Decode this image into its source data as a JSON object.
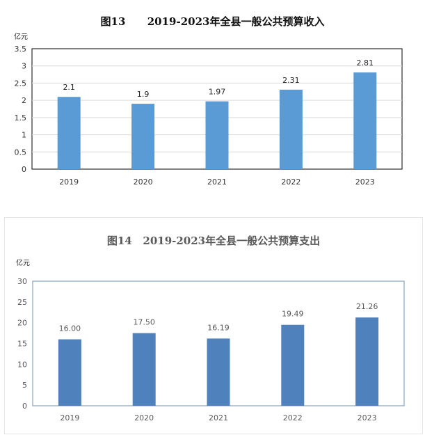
{
  "chart_data": [
    {
      "type": "bar",
      "title": "图13      2019-2023年全县一般公共预算收入",
      "ylabel": "亿元",
      "xlabel": "",
      "categories": [
        "2019",
        "2020",
        "2021",
        "2022",
        "2023"
      ],
      "values": [
        2.1,
        1.9,
        1.97,
        2.31,
        2.81
      ],
      "data_labels": [
        "2.1",
        "1.9",
        "1.97",
        "2.31",
        "2.81"
      ],
      "ylim": [
        0,
        3.5
      ],
      "yticks": [
        "0",
        "0.5",
        "1",
        "1.5",
        "2",
        "2.5",
        "3",
        "3.5"
      ],
      "grid": true,
      "bar_color": "#5b9bd5"
    },
    {
      "type": "bar",
      "title": "图14   2019-2023年全县一般公共预算支出",
      "ylabel": "亿元",
      "xlabel": "",
      "categories": [
        "2019",
        "2020",
        "2021",
        "2022",
        "2023"
      ],
      "values": [
        16.0,
        17.5,
        16.19,
        19.49,
        21.26
      ],
      "data_labels": [
        "16.00",
        "17.50",
        "16.19",
        "19.49",
        "21.26"
      ],
      "ylim": [
        0,
        30
      ],
      "yticks": [
        "0",
        "5",
        "10",
        "15",
        "20",
        "25",
        "30"
      ],
      "grid": false,
      "bar_color": "#4f81bd"
    }
  ]
}
